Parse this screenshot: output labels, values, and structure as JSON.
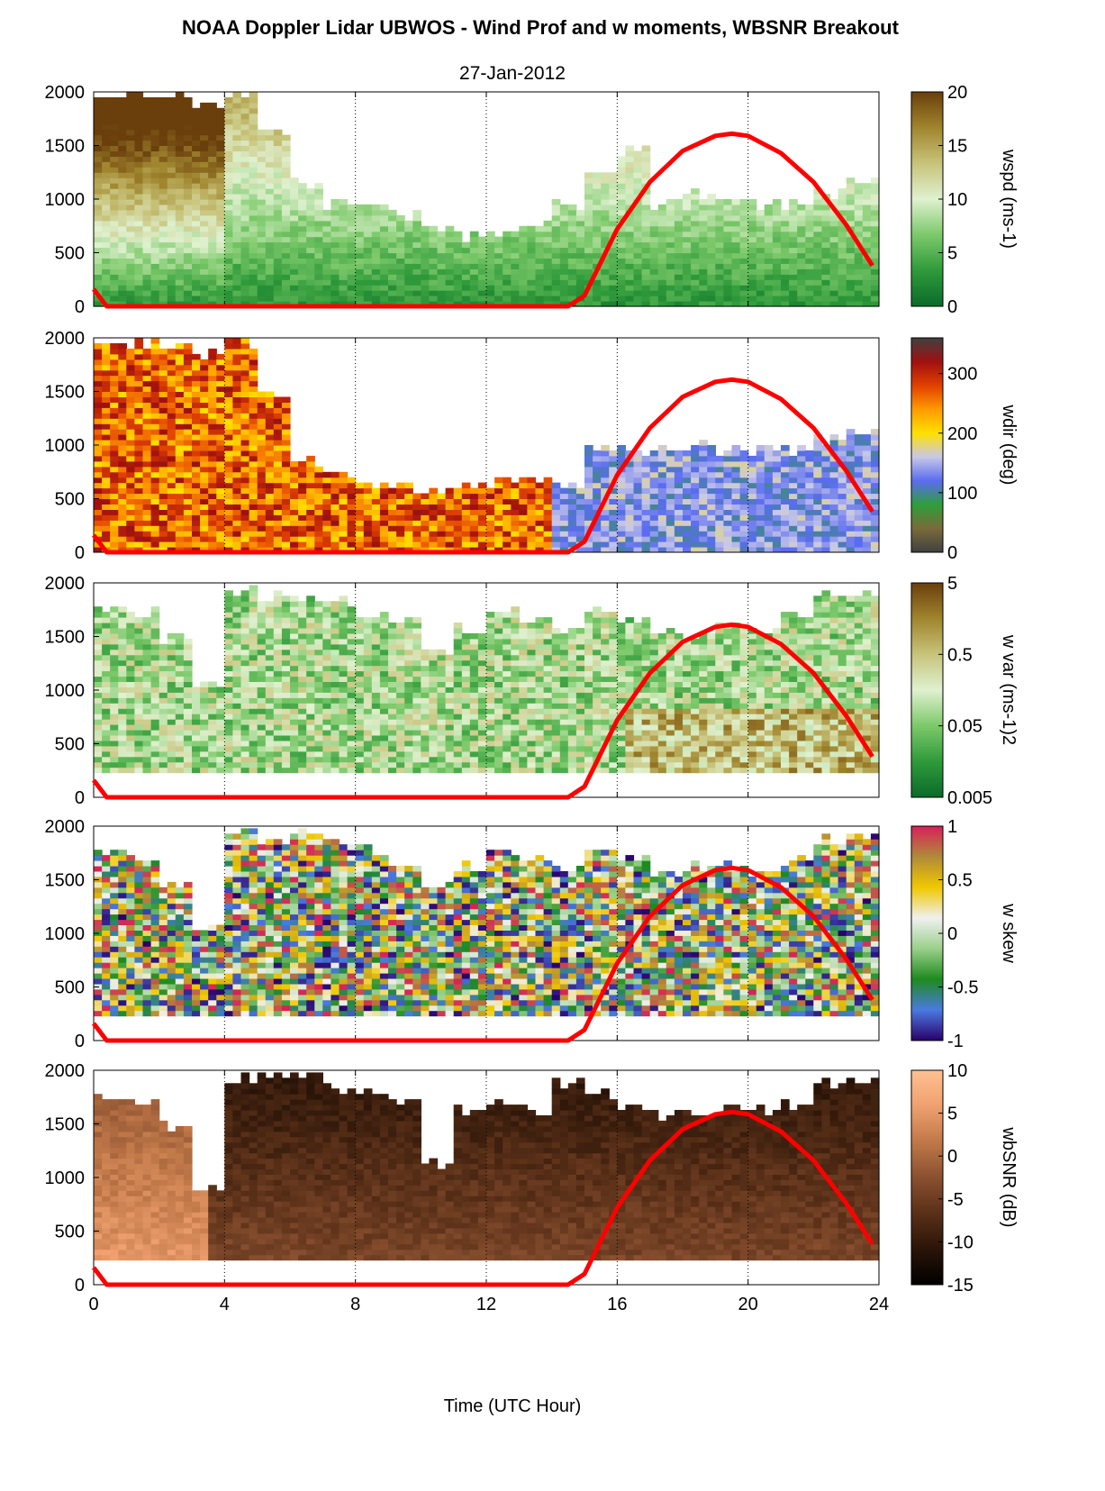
{
  "figure": {
    "title": "NOAA Doppler Lidar UBWOS - Wind Prof and w moments, WBSNR Breakout",
    "date": "27-Jan-2012",
    "xlabel": "Time (UTC Hour)"
  },
  "chart_data": [
    {
      "type": "heatmap",
      "variable": "wspd",
      "colorbar_label": "wspd (ms-1)",
      "colorbar_ticks": [
        "0",
        "5",
        "10",
        "15",
        "20"
      ],
      "clim": [
        0,
        20
      ],
      "colormap": [
        "#0a6b2a",
        "#2f9a3a",
        "#7cc96a",
        "#dff1cf",
        "#c8c37a",
        "#a0852e",
        "#6a3f0c"
      ],
      "x_range": [
        0,
        24
      ],
      "x_ticks": [
        "0",
        "4",
        "8",
        "12",
        "16",
        "20",
        "24"
      ],
      "y_range": [
        0,
        2000
      ],
      "y_ticks": [
        "0",
        "500",
        "1000",
        "1500",
        "2000"
      ],
      "grid": "dotted vertical lines at 4-hour intervals",
      "overlay_line_color": "#ff0000"
    },
    {
      "type": "heatmap",
      "variable": "wdir",
      "colorbar_label": "wdir (deg)",
      "colorbar_ticks": [
        "0",
        "100",
        "200",
        "300"
      ],
      "clim": [
        0,
        360
      ],
      "colormap": [
        "#404040",
        "#7a6a3a",
        "#2e9e3a",
        "#5a6cf0",
        "#c8c8e8",
        "#ffe000",
        "#ff9a00",
        "#e04000",
        "#a01010",
        "#404040"
      ],
      "x_range": [
        0,
        24
      ],
      "x_ticks": [
        "0",
        "4",
        "8",
        "12",
        "16",
        "20",
        "24"
      ],
      "y_range": [
        0,
        2000
      ],
      "y_ticks": [
        "0",
        "500",
        "1000",
        "1500",
        "2000"
      ],
      "grid": "dotted vertical lines at 4-hour intervals",
      "overlay_line_color": "#ff0000"
    },
    {
      "type": "heatmap",
      "variable": "w var",
      "colorbar_label": "w var (ms-1)2",
      "colorbar_ticks": [
        "0.005",
        "0.05",
        "0.5",
        "5"
      ],
      "clim": [
        0.005,
        5
      ],
      "scale": "log",
      "colormap": [
        "#0a6b2a",
        "#2f9a3a",
        "#7cc96a",
        "#dff1cf",
        "#c8c37a",
        "#a0852e",
        "#6a3f0c"
      ],
      "x_range": [
        0,
        24
      ],
      "x_ticks": [
        "0",
        "4",
        "8",
        "12",
        "16",
        "20",
        "24"
      ],
      "y_range": [
        0,
        2000
      ],
      "y_ticks": [
        "0",
        "500",
        "1000",
        "1500",
        "2000"
      ],
      "grid": "dotted vertical lines at 4-hour intervals",
      "overlay_line_color": "#ff0000"
    },
    {
      "type": "heatmap",
      "variable": "w skew",
      "colorbar_label": "w skew",
      "colorbar_ticks": [
        "-1",
        "-0.5",
        "0",
        "0.5",
        "1"
      ],
      "clim": [
        -1,
        1
      ],
      "colormap": [
        "#2a006a",
        "#4a7ae0",
        "#1e8a1e",
        "#9ad08a",
        "#f0f0f0",
        "#f0c800",
        "#b08a3a",
        "#d8205a"
      ],
      "x_range": [
        0,
        24
      ],
      "x_ticks": [
        "0",
        "4",
        "8",
        "12",
        "16",
        "20",
        "24"
      ],
      "y_range": [
        0,
        2000
      ],
      "y_ticks": [
        "0",
        "500",
        "1000",
        "1500",
        "2000"
      ],
      "grid": "dotted vertical lines at 4-hour intervals",
      "overlay_line_color": "#ff0000"
    },
    {
      "type": "heatmap",
      "variable": "wbSNR",
      "colorbar_label": "wbSNR (dB)",
      "colorbar_ticks": [
        "-15",
        "-10",
        "-5",
        "0",
        "5",
        "10"
      ],
      "clim": [
        -15,
        10
      ],
      "colormap": [
        "#000000",
        "#2a1408",
        "#5a3018",
        "#8a5030",
        "#c07848",
        "#f0a070",
        "#ffc090"
      ],
      "x_range": [
        0,
        24
      ],
      "x_ticks": [
        "0",
        "4",
        "8",
        "12",
        "16",
        "20",
        "24"
      ],
      "y_range": [
        0,
        2000
      ],
      "y_ticks": [
        "0",
        "500",
        "1000",
        "1500",
        "2000"
      ],
      "grid": "dotted vertical lines at 4-hour intervals",
      "overlay_line_color": "#ff0000"
    }
  ],
  "overlay_curve": {
    "color": "#ff0000",
    "x": [
      0,
      0.4,
      14.5,
      15,
      16,
      17,
      18,
      19,
      19.5,
      20,
      21,
      22,
      23,
      23.8
    ],
    "y": [
      160,
      0,
      0,
      100,
      720,
      1160,
      1450,
      1590,
      1610,
      1590,
      1430,
      1160,
      760,
      380
    ]
  }
}
